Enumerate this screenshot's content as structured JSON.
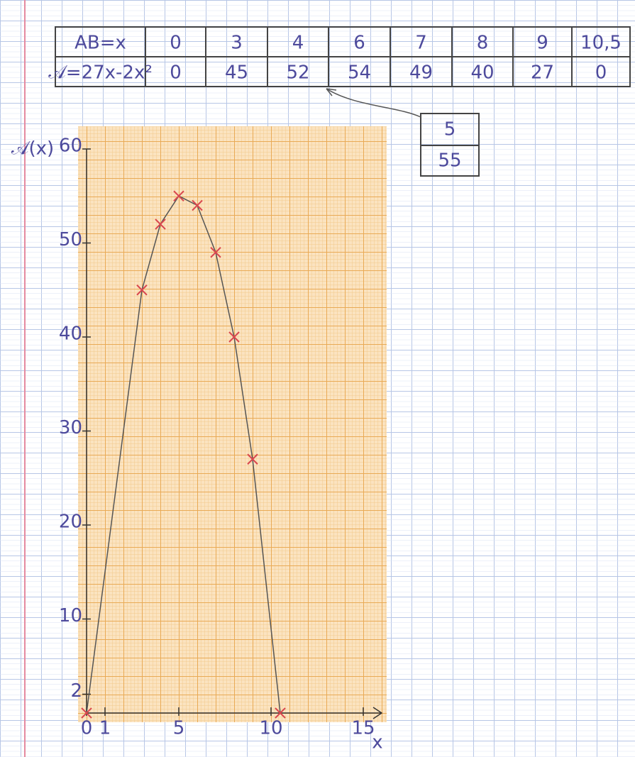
{
  "table": {
    "rows": [
      [
        "AB=x",
        "0",
        "3",
        "4",
        "6",
        "7",
        "8",
        "9",
        "10,5"
      ],
      [
        "𝒜=27x-2x²",
        "0",
        "45",
        "52",
        "54",
        "49",
        "40",
        "27",
        "0"
      ]
    ]
  },
  "side_box": [
    "5",
    "55"
  ],
  "chart_data": {
    "type": "line",
    "x": [
      0,
      3,
      4,
      5,
      6,
      7,
      8,
      9,
      10.5
    ],
    "values": [
      0,
      45,
      52,
      55,
      54,
      49,
      40,
      27,
      0
    ],
    "color": "#555555",
    "marker_color": "#d9474f",
    "xlim": [
      0,
      16
    ],
    "xticks": [
      0,
      1,
      5,
      10,
      15
    ],
    "ylim": [
      0,
      60
    ],
    "yticks": [
      2,
      10,
      20,
      30,
      40,
      50,
      60
    ],
    "xlabel": "x",
    "ylabel": "𝒜(x)"
  }
}
